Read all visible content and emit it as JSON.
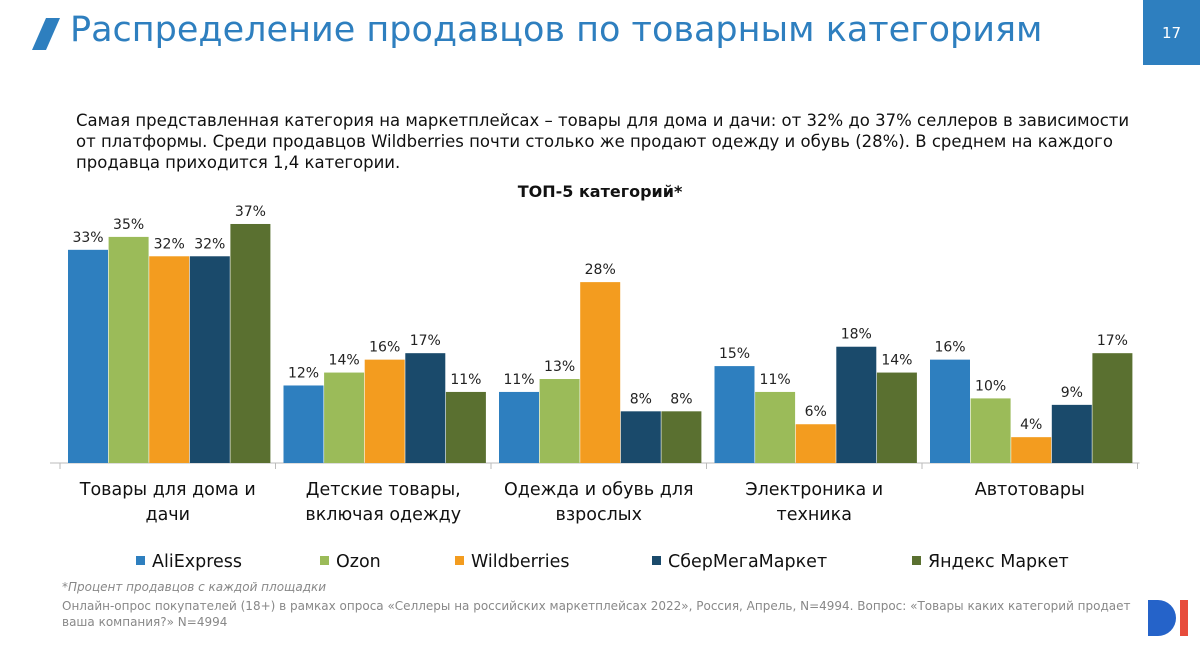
{
  "title": "Распределение продавцов по товарным категориям",
  "page_number": "17",
  "description": "Самая представленная категория на маркетплейсах – товары для дома и дачи: от 32% до 37% селлеров в зависимости от платформы. Среди продавцов Wildberries почти столько же продают одежду и обувь (28%). В среднем на каждого продавца приходится 1,4 категории.",
  "footnote": "*Процент продавцов с каждой площадки",
  "source": "Онлайн-опрос покупателей (18+) в рамках опроса «Селлеры на российских маркетплейсах 2022», Россия, Апрель, N=4994. Вопрос: «Товары каких категорий продает ваша компания?» N=4994",
  "chart_data": {
    "type": "bar",
    "title": "ТОП-5 категорий*",
    "categories": [
      "Товары для дома и дачи",
      "Детские товары, включая одежду",
      "Одежда и обувь для взрослых",
      "Электроника и техника",
      "Автотовары"
    ],
    "series": [
      {
        "name": "AliExpress",
        "color": "#2e7fbf",
        "values": [
          33,
          12,
          11,
          15,
          16
        ],
        "value_labels": [
          "33%",
          "12%",
          "11%",
          "15%",
          "16%"
        ]
      },
      {
        "name": "Ozon",
        "color": "#9bbb59",
        "values": [
          35,
          14,
          13,
          11,
          10
        ],
        "value_labels": [
          "35%",
          "14%",
          "13%",
          "11%",
          "10%"
        ]
      },
      {
        "name": "Wildberries",
        "color": "#f39c1f",
        "values": [
          32,
          16,
          28,
          6,
          4
        ],
        "value_labels": [
          "32%",
          "16%",
          "28%",
          "6%",
          "4%"
        ]
      },
      {
        "name": "СберМегаМаркет",
        "color": "#1a4a6b",
        "values": [
          32,
          17,
          8,
          18,
          9
        ],
        "value_labels": [
          "32%",
          "17%",
          "8%",
          "18%",
          "9%"
        ]
      },
      {
        "name": "Яндекс Маркет",
        "color": "#5a7030",
        "values": [
          37,
          11,
          8,
          14,
          17
        ],
        "value_labels": [
          "37%",
          "11%",
          "8%",
          "14%",
          "17%"
        ]
      }
    ]
  }
}
